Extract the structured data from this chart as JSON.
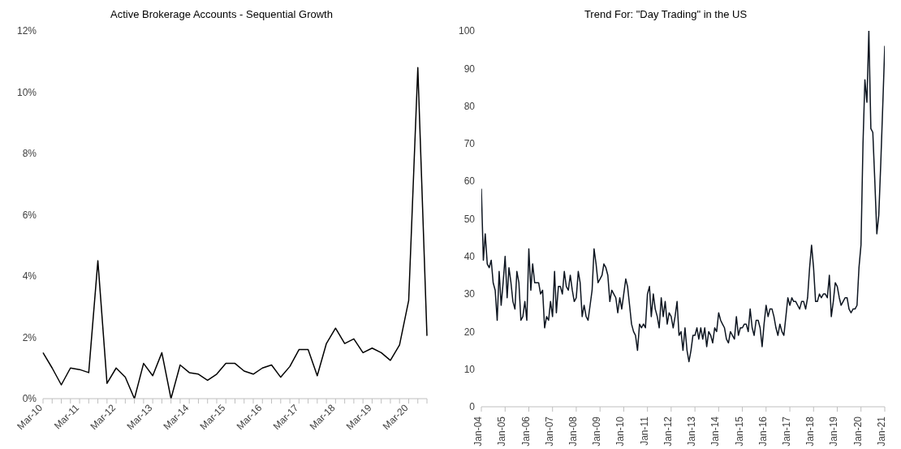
{
  "chart_data": [
    {
      "type": "line",
      "title": "Active Brokerage Accounts - Sequential Growth",
      "categories": [
        "Mar-10",
        null,
        null,
        null,
        "Mar-11",
        null,
        null,
        null,
        "Mar-12",
        null,
        null,
        null,
        "Mar-13",
        null,
        null,
        null,
        "Mar-14",
        null,
        null,
        null,
        "Mar-15",
        null,
        null,
        null,
        "Mar-16",
        null,
        null,
        null,
        "Mar-17",
        null,
        null,
        null,
        "Mar-18",
        null,
        null,
        null,
        "Mar-19",
        null,
        null,
        null,
        "Mar-20",
        null,
        null
      ],
      "values": [
        1.5,
        1.0,
        0.45,
        1.0,
        0.95,
        0.85,
        4.5,
        0.5,
        1.0,
        0.7,
        0.0,
        1.15,
        0.75,
        1.5,
        0.0,
        1.1,
        0.85,
        0.8,
        0.6,
        0.8,
        1.15,
        1.15,
        0.9,
        0.8,
        1.0,
        1.1,
        0.7,
        1.05,
        1.6,
        1.6,
        0.75,
        1.8,
        2.3,
        1.8,
        1.95,
        1.5,
        1.65,
        1.5,
        1.25,
        1.75,
        3.2,
        10.8,
        2.05
      ],
      "color": "#000000",
      "ylim": [
        0,
        12
      ],
      "yticks": [
        {
          "value": 0,
          "label": "0%"
        },
        {
          "value": 2,
          "label": "2%"
        },
        {
          "value": 4,
          "label": "4%"
        },
        {
          "value": 6,
          "label": "6%"
        },
        {
          "value": 8,
          "label": "8%"
        },
        {
          "value": 10,
          "label": "10%"
        },
        {
          "value": 12,
          "label": "12%"
        }
      ],
      "grid": false
    },
    {
      "type": "line",
      "title": "Trend For: \"Day Trading\" in the US",
      "x": [
        "2004-01",
        "2004-02",
        "2004-03",
        "2004-04",
        "2004-05",
        "2004-06",
        "2004-07",
        "2004-08",
        "2004-09",
        "2004-10",
        "2004-11",
        "2004-12",
        "2005-01",
        "2005-02",
        "2005-03",
        "2005-04",
        "2005-05",
        "2005-06",
        "2005-07",
        "2005-08",
        "2005-09",
        "2005-10",
        "2005-11",
        "2005-12",
        "2006-01",
        "2006-02",
        "2006-03",
        "2006-04",
        "2006-05",
        "2006-06",
        "2006-07",
        "2006-08",
        "2006-09",
        "2006-10",
        "2006-11",
        "2006-12",
        "2007-01",
        "2007-02",
        "2007-03",
        "2007-04",
        "2007-05",
        "2007-06",
        "2007-07",
        "2007-08",
        "2007-09",
        "2007-10",
        "2007-11",
        "2007-12",
        "2008-01",
        "2008-02",
        "2008-03",
        "2008-04",
        "2008-05",
        "2008-06",
        "2008-07",
        "2008-08",
        "2008-09",
        "2008-10",
        "2008-11",
        "2008-12",
        "2009-01",
        "2009-02",
        "2009-03",
        "2009-04",
        "2009-05",
        "2009-06",
        "2009-07",
        "2009-08",
        "2009-09",
        "2009-10",
        "2009-11",
        "2009-12",
        "2010-01",
        "2010-02",
        "2010-03",
        "2010-04",
        "2010-05",
        "2010-06",
        "2010-07",
        "2010-08",
        "2010-09",
        "2010-10",
        "2010-11",
        "2010-12",
        "2011-01",
        "2011-02",
        "2011-03",
        "2011-04",
        "2011-05",
        "2011-06",
        "2011-07",
        "2011-08",
        "2011-09",
        "2011-10",
        "2011-11",
        "2011-12",
        "2012-01",
        "2012-02",
        "2012-03",
        "2012-04",
        "2012-05",
        "2012-06",
        "2012-07",
        "2012-08",
        "2012-09",
        "2012-10",
        "2012-11",
        "2012-12",
        "2013-01",
        "2013-02",
        "2013-03",
        "2013-04",
        "2013-05",
        "2013-06",
        "2013-07",
        "2013-08",
        "2013-09",
        "2013-10",
        "2013-11",
        "2013-12",
        "2014-01",
        "2014-02",
        "2014-03",
        "2014-04",
        "2014-05",
        "2014-06",
        "2014-07",
        "2014-08",
        "2014-09",
        "2014-10",
        "2014-11",
        "2014-12",
        "2015-01",
        "2015-02",
        "2015-03",
        "2015-04",
        "2015-05",
        "2015-06",
        "2015-07",
        "2015-08",
        "2015-09",
        "2015-10",
        "2015-11",
        "2015-12",
        "2016-01",
        "2016-02",
        "2016-03",
        "2016-04",
        "2016-05",
        "2016-06",
        "2016-07",
        "2016-08",
        "2016-09",
        "2016-10",
        "2016-11",
        "2016-12",
        "2017-01",
        "2017-02",
        "2017-03",
        "2017-04",
        "2017-05",
        "2017-06",
        "2017-07",
        "2017-08",
        "2017-09",
        "2017-10",
        "2017-11",
        "2017-12",
        "2018-01",
        "2018-02",
        "2018-03",
        "2018-04",
        "2018-05",
        "2018-06",
        "2018-07",
        "2018-08",
        "2018-09",
        "2018-10",
        "2018-11",
        "2018-12",
        "2019-01",
        "2019-02",
        "2019-03",
        "2019-04",
        "2019-05",
        "2019-06",
        "2019-07",
        "2019-08",
        "2019-09",
        "2019-10",
        "2019-11",
        "2019-12",
        "2020-01",
        "2020-02",
        "2020-03",
        "2020-04",
        "2020-05",
        "2020-06",
        "2020-07",
        "2020-08",
        "2020-09",
        "2020-10",
        "2020-11",
        "2020-12",
        "2021-01"
      ],
      "values": [
        58,
        39,
        46,
        38,
        37,
        39,
        33,
        31,
        23,
        36,
        27,
        33,
        40,
        29,
        37,
        33,
        28,
        26,
        36,
        33,
        23,
        24,
        28,
        23,
        42,
        31,
        38,
        33,
        33,
        33,
        30,
        31,
        21,
        24,
        23,
        28,
        24,
        36,
        25,
        32,
        32,
        30,
        36,
        32,
        31,
        35,
        31,
        28,
        29,
        36,
        33,
        24,
        27,
        24,
        23,
        27,
        31,
        42,
        38,
        33,
        34,
        35,
        38,
        37,
        35,
        28,
        31,
        30,
        29,
        25,
        29,
        26,
        30,
        34,
        32,
        27,
        22,
        20,
        19,
        15,
        22,
        21,
        22,
        21,
        30,
        32,
        24,
        30,
        26,
        24,
        21,
        29,
        24,
        28,
        22,
        25,
        24,
        21,
        24,
        28,
        19,
        20,
        15,
        21,
        15,
        12,
        15,
        19,
        19,
        21,
        18,
        21,
        18,
        21,
        16,
        20,
        19,
        17,
        21,
        20,
        25,
        23,
        22,
        21,
        18,
        17,
        20,
        19,
        18,
        24,
        19,
        21,
        21,
        22,
        22,
        20,
        26,
        21,
        19,
        23,
        23,
        21,
        16,
        22,
        27,
        24,
        26,
        26,
        24,
        21,
        19,
        22,
        20,
        19,
        24,
        29,
        27,
        29,
        28,
        28,
        27,
        26,
        28,
        28,
        26,
        29,
        37,
        43,
        37,
        28,
        28,
        30,
        29,
        30,
        30,
        29,
        35,
        24,
        28,
        33,
        32,
        29,
        27,
        28,
        29,
        29,
        26,
        25,
        26,
        26,
        27,
        37,
        43,
        70,
        87,
        81,
        100,
        74,
        73,
        60,
        46,
        51,
        65,
        80,
        96
      ],
      "color": "#0d1520",
      "xlim": [
        "2004-01",
        "2021-01"
      ],
      "xticks": [
        {
          "value": "2004-01",
          "label": "Jan-04"
        },
        {
          "value": "2005-01",
          "label": "Jan-05"
        },
        {
          "value": "2006-01",
          "label": "Jan-06"
        },
        {
          "value": "2007-01",
          "label": "Jan-07"
        },
        {
          "value": "2008-01",
          "label": "Jan-08"
        },
        {
          "value": "2009-01",
          "label": "Jan-09"
        },
        {
          "value": "2010-01",
          "label": "Jan-10"
        },
        {
          "value": "2011-01",
          "label": "Jan-11"
        },
        {
          "value": "2012-01",
          "label": "Jan-12"
        },
        {
          "value": "2013-01",
          "label": "Jan-13"
        },
        {
          "value": "2014-01",
          "label": "Jan-14"
        },
        {
          "value": "2015-01",
          "label": "Jan-15"
        },
        {
          "value": "2016-01",
          "label": "Jan-16"
        },
        {
          "value": "2017-01",
          "label": "Jan-17"
        },
        {
          "value": "2018-01",
          "label": "Jan-18"
        },
        {
          "value": "2019-01",
          "label": "Jan-19"
        },
        {
          "value": "2020-01",
          "label": "Jan-20"
        },
        {
          "value": "2021-01",
          "label": "Jan-21"
        }
      ],
      "ylim": [
        0,
        100
      ],
      "yticks": [
        0,
        10,
        20,
        30,
        40,
        50,
        60,
        70,
        80,
        90,
        100
      ],
      "grid": false
    }
  ]
}
